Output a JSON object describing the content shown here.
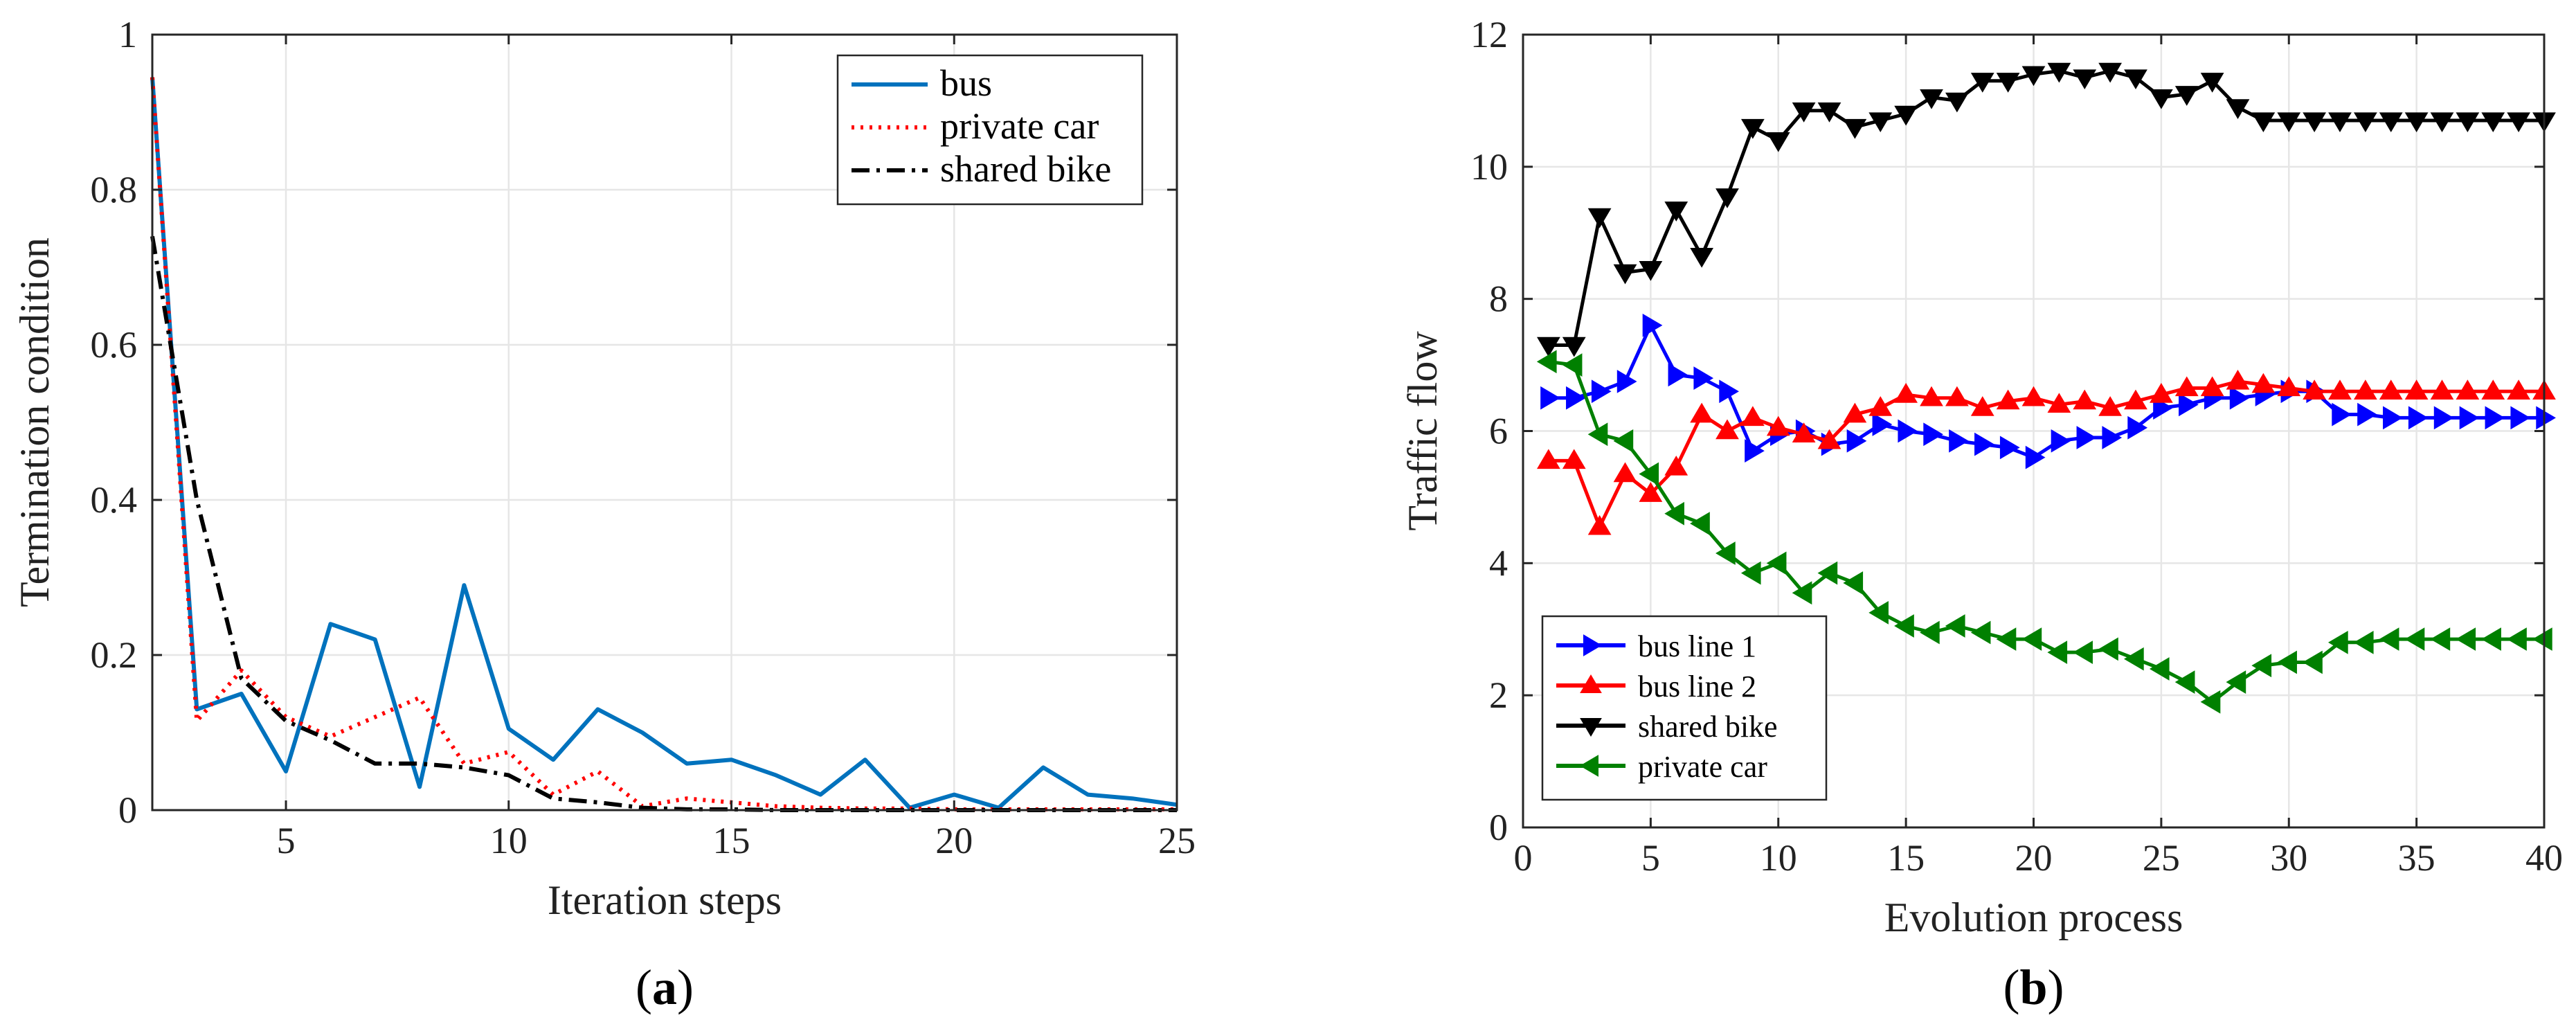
{
  "chart_data": [
    {
      "type": "line",
      "panel_label": "a",
      "title": "",
      "xlabel": "Iteration steps",
      "ylabel": "Termination condition",
      "xlim": [
        2,
        25
      ],
      "ylim": [
        0,
        1
      ],
      "xticks": [
        5,
        10,
        15,
        20,
        25
      ],
      "yticks": [
        0,
        0.2,
        0.4,
        0.6,
        0.8,
        1
      ],
      "ytick_labels": [
        "0",
        "0.2",
        "0.4",
        "0.6",
        "0.8",
        "1"
      ],
      "grid": true,
      "legend_position": "top-right",
      "x": [
        2,
        3,
        4,
        5,
        6,
        7,
        8,
        9,
        10,
        11,
        12,
        13,
        14,
        15,
        16,
        17,
        18,
        19,
        20,
        21,
        22,
        23,
        24,
        25
      ],
      "series": [
        {
          "name": "bus",
          "color": "#0072BD",
          "style": "solid",
          "values": [
            0.945,
            0.13,
            0.15,
            0.05,
            0.24,
            0.22,
            0.03,
            0.29,
            0.105,
            0.065,
            0.13,
            0.1,
            0.06,
            0.065,
            0.045,
            0.02,
            0.065,
            0.003,
            0.02,
            0.003,
            0.055,
            0.02,
            0.015,
            0.007
          ]
        },
        {
          "name": "private car",
          "color": "#FF0000",
          "style": "dotted",
          "values": [
            0.945,
            0.115,
            0.18,
            0.12,
            0.095,
            0.12,
            0.145,
            0.06,
            0.075,
            0.02,
            0.05,
            0.005,
            0.015,
            0.01,
            0.005,
            0.003,
            0.002,
            0.002,
            0.001,
            0.001,
            0.001,
            0.001,
            0.001,
            0.001
          ]
        },
        {
          "name": "shared bike",
          "color": "#000000",
          "style": "dashdot",
          "values": [
            0.74,
            0.4,
            0.17,
            0.115,
            0.09,
            0.06,
            0.06,
            0.055,
            0.045,
            0.015,
            0.01,
            0.003,
            0.001,
            0.001,
            0.0,
            0.0,
            0.0,
            0.0,
            0.0,
            0.0,
            0.0,
            0.0,
            0.0,
            0.0
          ]
        }
      ]
    },
    {
      "type": "line",
      "panel_label": "b",
      "title": "",
      "xlabel": "Evolution process",
      "ylabel": "Traffic flow",
      "xlim": [
        0,
        40
      ],
      "ylim": [
        0,
        12
      ],
      "xticks": [
        0,
        5,
        10,
        15,
        20,
        25,
        30,
        35,
        40
      ],
      "yticks": [
        0,
        2,
        4,
        6,
        8,
        10,
        12
      ],
      "ytick_labels": [
        "0",
        "2",
        "4",
        "6",
        "8",
        "10",
        "12"
      ],
      "grid": true,
      "legend_position": "bottom-left",
      "x": [
        1,
        2,
        3,
        4,
        5,
        6,
        7,
        8,
        9,
        10,
        11,
        12,
        13,
        14,
        15,
        16,
        17,
        18,
        19,
        20,
        21,
        22,
        23,
        24,
        25,
        26,
        27,
        28,
        29,
        30,
        31,
        32,
        33,
        34,
        35,
        36,
        37,
        38,
        39,
        40
      ],
      "series": [
        {
          "name": "bus line 1",
          "color": "#0000FF",
          "marker": "triangle-right",
          "values": [
            6.5,
            6.5,
            6.6,
            6.75,
            7.6,
            6.85,
            6.8,
            6.6,
            5.7,
            5.95,
            6.0,
            5.8,
            5.85,
            6.1,
            6.0,
            5.95,
            5.85,
            5.8,
            5.75,
            5.6,
            5.85,
            5.9,
            5.9,
            6.05,
            6.35,
            6.4,
            6.5,
            6.5,
            6.55,
            6.6,
            6.6,
            6.25,
            6.25,
            6.2,
            6.2,
            6.2,
            6.2,
            6.2,
            6.2,
            6.2
          ]
        },
        {
          "name": "bus line 2",
          "color": "#FF0000",
          "marker": "triangle-up",
          "values": [
            5.55,
            5.55,
            4.55,
            5.35,
            5.05,
            5.45,
            6.25,
            6.0,
            6.2,
            6.05,
            5.95,
            5.85,
            6.25,
            6.35,
            6.55,
            6.5,
            6.5,
            6.35,
            6.45,
            6.5,
            6.4,
            6.45,
            6.35,
            6.45,
            6.55,
            6.65,
            6.65,
            6.75,
            6.7,
            6.65,
            6.6,
            6.6,
            6.6,
            6.6,
            6.6,
            6.6,
            6.6,
            6.6,
            6.6,
            6.6
          ]
        },
        {
          "name": "shared bike",
          "color": "#000000",
          "marker": "triangle-down",
          "values": [
            7.3,
            7.3,
            9.25,
            8.4,
            8.45,
            9.35,
            8.65,
            9.55,
            10.6,
            10.4,
            10.85,
            10.85,
            10.6,
            10.7,
            10.8,
            11.05,
            11.0,
            11.3,
            11.3,
            11.4,
            11.45,
            11.35,
            11.45,
            11.35,
            11.05,
            11.1,
            11.3,
            10.9,
            10.7,
            10.7,
            10.7,
            10.7,
            10.7,
            10.7,
            10.7,
            10.7,
            10.7,
            10.7,
            10.7,
            10.7
          ]
        },
        {
          "name": "private car",
          "color": "#008000",
          "marker": "triangle-left",
          "values": [
            7.05,
            7.0,
            5.95,
            5.85,
            5.35,
            4.75,
            4.6,
            4.15,
            3.85,
            4.0,
            3.55,
            3.85,
            3.7,
            3.25,
            3.05,
            2.95,
            3.05,
            2.95,
            2.85,
            2.85,
            2.65,
            2.65,
            2.7,
            2.55,
            2.4,
            2.2,
            1.9,
            2.2,
            2.45,
            2.5,
            2.5,
            2.8,
            2.8,
            2.85,
            2.85,
            2.85,
            2.85,
            2.85,
            2.85,
            2.85
          ]
        }
      ]
    }
  ]
}
